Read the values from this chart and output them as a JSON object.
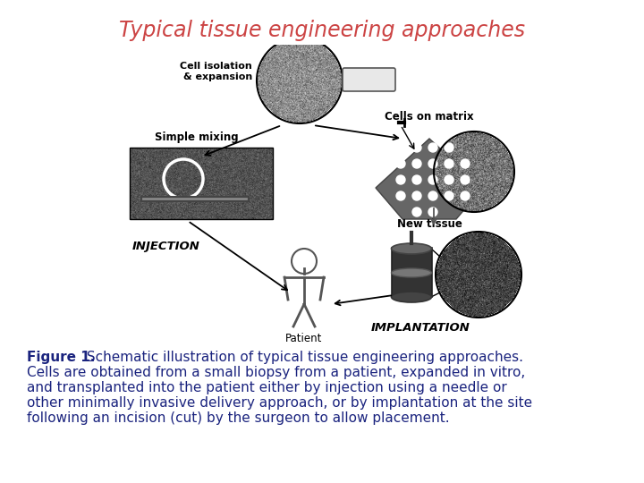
{
  "title": "Typical tissue engineering approaches",
  "title_color": "#cc4444",
  "title_fontsize": 17,
  "body_text_bold": "Figure 1.",
  "body_text_color": "#1a237e",
  "body_fontsize": 11,
  "background_color": "#ffffff",
  "figsize": [
    7.2,
    5.4
  ],
  "dpi": 100,
  "caption_lines": [
    " Schematic illustration of typical tissue engineering approaches.",
    "Cells are obtained from a small biopsy from a patient, expanded in vitro,",
    "and transplanted into the patient either by injection using a needle or",
    "other minimally invasive delivery approach, or by implantation at the site",
    "following an incision (cut) by the surgeon to allow placement."
  ]
}
